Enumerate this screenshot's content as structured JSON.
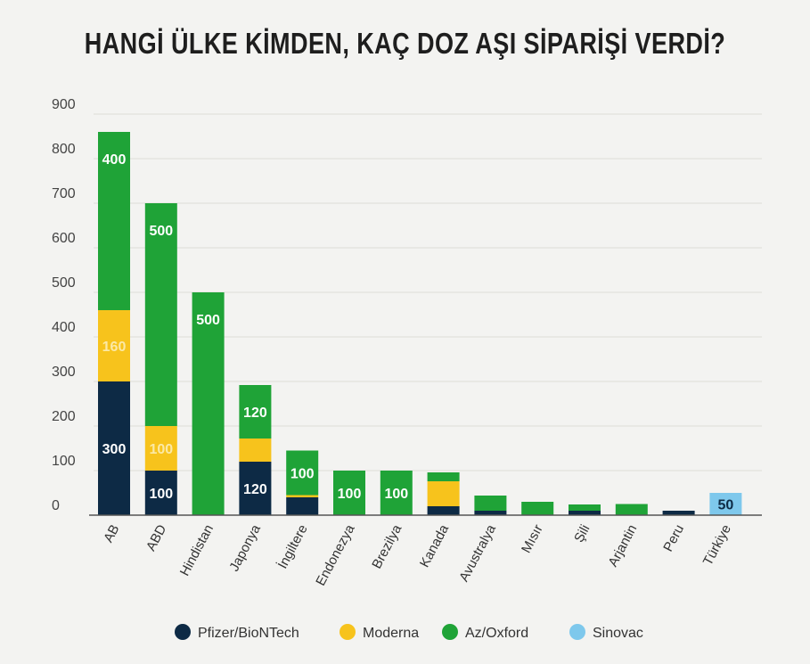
{
  "chart_data": {
    "type": "bar",
    "stacked": true,
    "title": "HANGİ ÜLKE KİMDEN, KAÇ DOZ AŞI SİPARİŞİ VERDİ?",
    "xlabel": "",
    "ylabel": "",
    "ylim": [
      0,
      900
    ],
    "yticks": [
      0,
      100,
      200,
      300,
      400,
      500,
      600,
      700,
      800,
      900
    ],
    "grid": true,
    "legend_position": "bottom",
    "categories": [
      "AB",
      "ABD",
      "Hindistan",
      "Japonya",
      "İngiltere",
      "Endonezya",
      "Brezilya",
      "Kanada",
      "Avustralya",
      "Mısır",
      "Şili",
      "Arjantin",
      "Peru",
      "Türkiye"
    ],
    "series": [
      {
        "name": "Pfizer/BioNTech",
        "color": "#0d2a45",
        "label_color": "#ffffff",
        "values": [
          300,
          100,
          0,
          120,
          40,
          0,
          0,
          20,
          10,
          0,
          10,
          0,
          10,
          0
        ],
        "labels": [
          "300",
          "100",
          "",
          "120",
          "",
          "",
          "",
          "",
          "",
          "",
          "",
          "",
          "",
          ""
        ]
      },
      {
        "name": "Moderna",
        "color": "#f7c31c",
        "label_color": "#fbe9a6",
        "values": [
          160,
          100,
          0,
          52,
          5,
          0,
          0,
          56,
          0,
          0,
          0,
          0,
          0,
          0
        ],
        "labels": [
          "160",
          "100",
          "",
          "",
          "",
          "",
          "",
          "",
          "",
          "",
          "",
          "",
          "",
          ""
        ]
      },
      {
        "name": "Az/Oxford",
        "color": "#1fa337",
        "label_color": "#ffffff",
        "values": [
          400,
          500,
          500,
          120,
          100,
          100,
          100,
          20,
          34,
          30,
          14,
          25,
          0,
          0
        ],
        "labels": [
          "400",
          "500",
          "500",
          "120",
          "100",
          "100",
          "100",
          "",
          "",
          "",
          "",
          "",
          "",
          ""
        ]
      },
      {
        "name": "Sinovac",
        "color": "#7ec8ec",
        "label_color": "#0d2a45",
        "values": [
          0,
          0,
          0,
          0,
          0,
          0,
          0,
          0,
          0,
          0,
          0,
          0,
          0,
          50
        ],
        "labels": [
          "",
          "",
          "",
          "",
          "",
          "",
          "",
          "",
          "",
          "",
          "",
          "",
          "",
          "50"
        ]
      }
    ]
  }
}
